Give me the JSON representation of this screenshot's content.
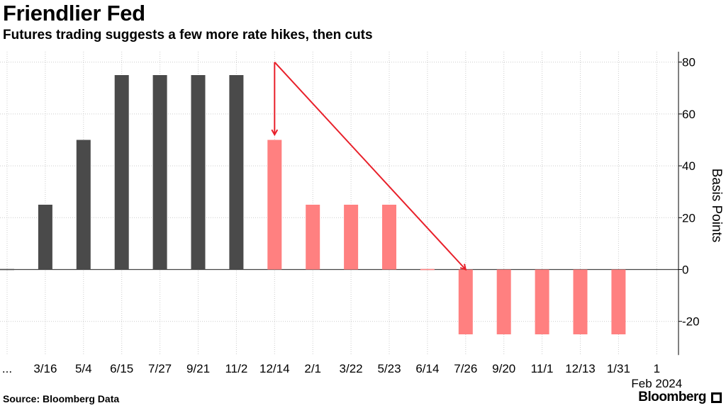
{
  "title": "Friendlier Fed",
  "subtitle": "Futures trading suggests a few more rate hikes, then cuts",
  "source": "Source: Bloomberg Data",
  "brand": "Bloomberg",
  "colors": {
    "past": "#4a4a4a",
    "future": "#ff8080",
    "arrow": "#e8202a",
    "grid": "#cccccc",
    "zero": "#444444"
  },
  "chart_data": {
    "type": "bar",
    "ylabel": "Basis Points",
    "ylim": [
      -33,
      84
    ],
    "yticks": [
      80,
      60,
      40,
      20,
      0,
      -20
    ],
    "ytick_labels": [
      "80",
      "60",
      "40",
      "20",
      "0",
      "-20"
    ],
    "categories": [
      "...",
      "3/16",
      "5/4",
      "6/15",
      "7/27",
      "9/21",
      "11/2",
      "12/14",
      "2/1",
      "3/22",
      "5/23",
      "6/14",
      "7/26",
      "9/20",
      "11/1",
      "12/13",
      "1/31",
      "1"
    ],
    "values": [
      0,
      25,
      50,
      75,
      75,
      75,
      75,
      50,
      25,
      25,
      25,
      0,
      -25,
      -25,
      -25,
      -25,
      -25,
      null
    ],
    "bar_group": [
      "past",
      "past",
      "past",
      "past",
      "past",
      "past",
      "past",
      "future",
      "future",
      "future",
      "future",
      "future",
      "future",
      "future",
      "future",
      "future",
      "future",
      "future"
    ],
    "x_sublabel": "Feb 2024",
    "annotations": [
      {
        "type": "arrow",
        "from": {
          "category": "12/14",
          "y": 80
        },
        "to": {
          "category": "12/14",
          "y": 52
        }
      },
      {
        "type": "arrow",
        "from": {
          "category": "12/14",
          "y": 80
        },
        "to": {
          "category": "7/26",
          "y": 0
        }
      }
    ]
  }
}
